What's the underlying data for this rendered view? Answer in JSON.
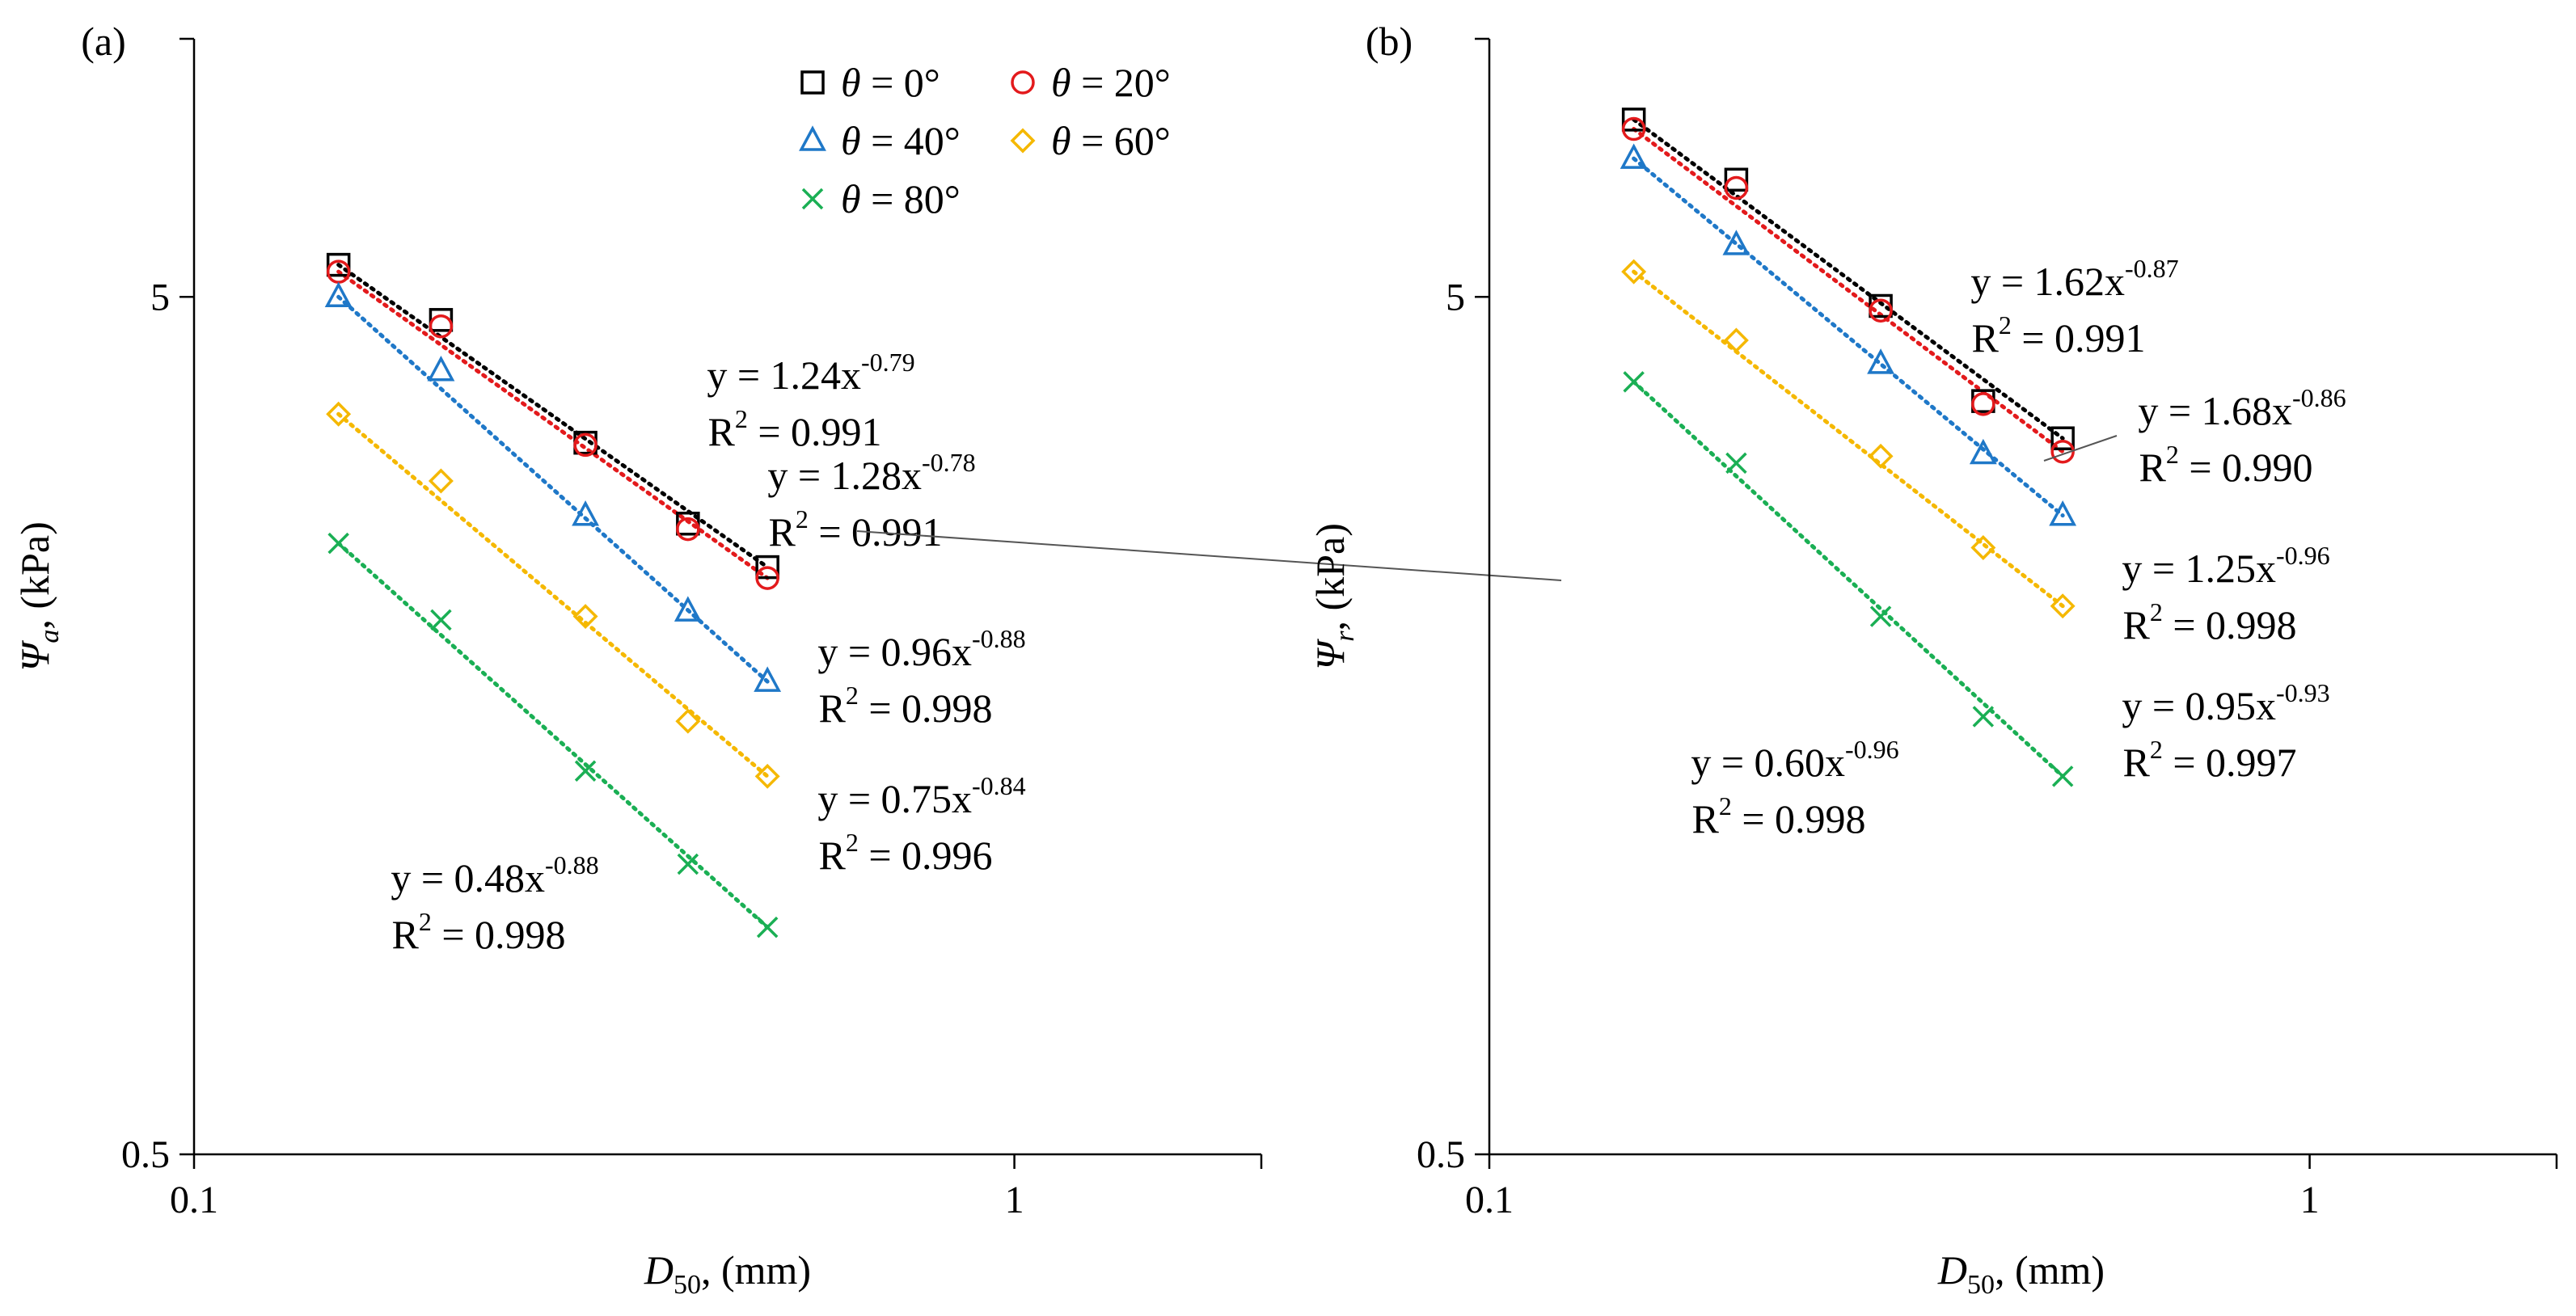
{
  "chart_data": [
    {
      "type": "scatter",
      "panel_label": "(a)",
      "xlabel": {
        "main": "D",
        "sub": "50",
        "tail": ", (mm)"
      },
      "ylabel": {
        "main": "Ψ",
        "sub": "a",
        "tail": ", (kPa)"
      },
      "x_scale": "log",
      "y_scale": "log",
      "xlim": [
        0.1,
        2
      ],
      "ylim": [
        0.5,
        10
      ],
      "x_ticks": [
        {
          "v": 0.1,
          "label": "0.1"
        },
        {
          "v": 1,
          "label": "1"
        }
      ],
      "y_ticks": [
        {
          "v": 0.5,
          "label": "0.5"
        },
        {
          "v": 5,
          "label": "5"
        }
      ],
      "legend": {
        "position": "top-right",
        "entries": [
          {
            "series": 0,
            "label": "= 0°"
          },
          {
            "series": 1,
            "label": "= 20°"
          },
          {
            "series": 2,
            "label": "= 40°"
          },
          {
            "series": 3,
            "label": "= 60°"
          },
          {
            "series": 4,
            "label": "= 80°"
          }
        ],
        "symbol": "θ"
      },
      "series": [
        {
          "name": "θ = 0°",
          "marker": "square",
          "color": "#000000",
          "x": [
            0.15,
            0.2,
            0.3,
            0.4,
            0.5
          ],
          "y": [
            5.45,
            4.7,
            3.38,
            2.72,
            2.42
          ],
          "fit": {
            "a": 1.24,
            "b": -0.79
          }
        },
        {
          "name": "θ = 20°",
          "marker": "circle",
          "color": "#e31a1c",
          "x": [
            0.15,
            0.2,
            0.3,
            0.4,
            0.5
          ],
          "y": [
            5.35,
            4.62,
            3.36,
            2.68,
            2.35
          ],
          "fit": {
            "a": 1.28,
            "b": -0.78
          }
        },
        {
          "name": "θ = 40°",
          "marker": "triangle",
          "color": "#1f78c8",
          "x": [
            0.15,
            0.2,
            0.3,
            0.4,
            0.5
          ],
          "y": [
            5.0,
            4.1,
            2.78,
            2.15,
            1.78
          ],
          "fit": {
            "a": 0.96,
            "b": -0.88
          }
        },
        {
          "name": "θ = 60°",
          "marker": "diamond",
          "color": "#f5b800",
          "x": [
            0.15,
            0.2,
            0.3,
            0.4,
            0.5
          ],
          "y": [
            3.65,
            3.05,
            2.12,
            1.6,
            1.38
          ],
          "fit": {
            "a": 0.75,
            "b": -0.84
          }
        },
        {
          "name": "θ = 80°",
          "marker": "cross",
          "color": "#1aaf54",
          "x": [
            0.15,
            0.2,
            0.3,
            0.4,
            0.5
          ],
          "y": [
            2.58,
            2.1,
            1.4,
            1.09,
            0.92
          ],
          "fit": {
            "a": 0.48,
            "b": -0.88
          }
        }
      ],
      "annotations": [
        {
          "eq_prefix": "y = 1.24x",
          "exp": "-0.79",
          "r2": "= 0.991"
        },
        {
          "eq_prefix": "y = 1.28x",
          "exp": "-0.78",
          "r2": "= 0.991"
        },
        {
          "eq_prefix": "y = 0.96x",
          "exp": "-0.88",
          "r2": "= 0.998"
        },
        {
          "eq_prefix": "y = 0.75x",
          "exp": "-0.84",
          "r2": "= 0.996"
        },
        {
          "eq_prefix": "y = 0.48x",
          "exp": "-0.88",
          "r2": "= 0.998"
        }
      ]
    },
    {
      "type": "scatter",
      "panel_label": "(b)",
      "xlabel": {
        "main": "D",
        "sub": "50",
        "tail": ", (mm)"
      },
      "ylabel": {
        "main": "Ψ",
        "sub": "r",
        "tail": ", (kPa)"
      },
      "x_scale": "log",
      "y_scale": "log",
      "xlim": [
        0.1,
        2
      ],
      "ylim": [
        0.5,
        10
      ],
      "x_ticks": [
        {
          "v": 0.1,
          "label": "0.1"
        },
        {
          "v": 1,
          "label": "1"
        }
      ],
      "y_ticks": [
        {
          "v": 0.5,
          "label": "0.5"
        },
        {
          "v": 5,
          "label": "5"
        }
      ],
      "series": [
        {
          "name": "θ = 0°",
          "marker": "square",
          "color": "#000000",
          "x": [
            0.15,
            0.2,
            0.3,
            0.4,
            0.5
          ],
          "y": [
            8.05,
            6.85,
            4.88,
            3.78,
            3.42
          ],
          "fit": {
            "a": 1.62,
            "b": -0.87
          }
        },
        {
          "name": "θ = 20°",
          "marker": "circle",
          "color": "#e31a1c",
          "x": [
            0.15,
            0.2,
            0.3,
            0.4,
            0.5
          ],
          "y": [
            7.85,
            6.7,
            4.82,
            3.75,
            3.3
          ],
          "fit": {
            "a": 1.68,
            "b": -0.86
          }
        },
        {
          "name": "θ = 40°",
          "marker": "triangle",
          "color": "#1f78c8",
          "x": [
            0.15,
            0.2,
            0.3,
            0.4,
            0.5
          ],
          "y": [
            7.25,
            5.75,
            4.18,
            3.28,
            2.78
          ],
          "fit": {
            "a": 1.25,
            "b": -0.96
          }
        },
        {
          "name": "θ = 60°",
          "marker": "diamond",
          "color": "#f5b800",
          "x": [
            0.15,
            0.2,
            0.3,
            0.4,
            0.5
          ],
          "y": [
            5.35,
            4.45,
            3.26,
            2.55,
            2.18
          ],
          "fit": {
            "a": 0.95,
            "b": -0.93
          }
        },
        {
          "name": "θ = 80°",
          "marker": "cross",
          "color": "#1aaf54",
          "x": [
            0.15,
            0.2,
            0.3,
            0.4,
            0.5
          ],
          "y": [
            3.98,
            3.2,
            2.12,
            1.62,
            1.38
          ],
          "fit": {
            "a": 0.6,
            "b": -0.96
          }
        }
      ],
      "annotations": [
        {
          "eq_prefix": "y = 1.62x",
          "exp": "-0.87",
          "r2": "= 0.991"
        },
        {
          "eq_prefix": "y = 1.68x",
          "exp": "-0.86",
          "r2": "= 0.990"
        },
        {
          "eq_prefix": "y = 1.25x",
          "exp": "-0.96",
          "r2": "= 0.998"
        },
        {
          "eq_prefix": "y = 0.95x",
          "exp": "-0.93",
          "r2": "= 0.997"
        },
        {
          "eq_prefix": "y = 0.60x",
          "exp": "-0.96",
          "r2": "= 0.998"
        }
      ]
    }
  ]
}
